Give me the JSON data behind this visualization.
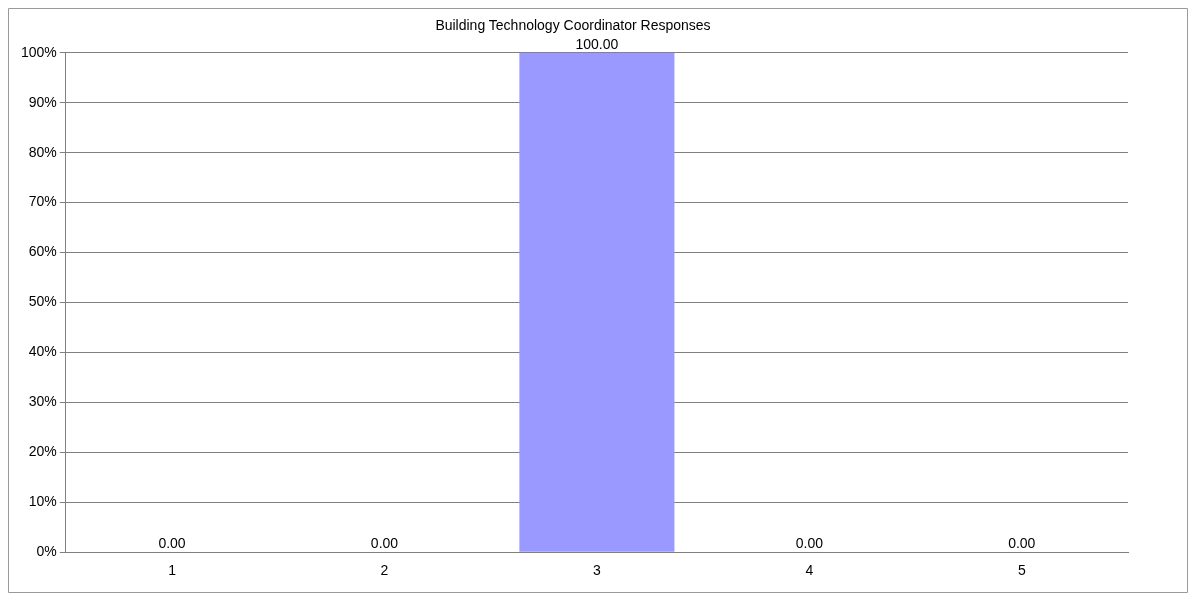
{
  "chart_data": {
    "type": "bar",
    "title": "Building Technology Coordinator Responses",
    "categories": [
      "1",
      "2",
      "3",
      "4",
      "5"
    ],
    "values": [
      0,
      0,
      100,
      0,
      0
    ],
    "value_labels": [
      "0.00",
      "0.00",
      "100.00",
      "0.00",
      "0.00"
    ],
    "color": "#9999ff",
    "ylim": [
      0,
      100
    ],
    "yticks": [
      {
        "value": 0,
        "label": "0%"
      },
      {
        "value": 10,
        "label": "10%"
      },
      {
        "value": 20,
        "label": "20%"
      },
      {
        "value": 30,
        "label": "30%"
      },
      {
        "value": 40,
        "label": "40%"
      },
      {
        "value": 50,
        "label": "50%"
      },
      {
        "value": 60,
        "label": "60%"
      },
      {
        "value": 70,
        "label": "70%"
      },
      {
        "value": 80,
        "label": "80%"
      },
      {
        "value": 90,
        "label": "90%"
      },
      {
        "value": 100,
        "label": "100%"
      }
    ],
    "grid": "y",
    "legend": false
  }
}
